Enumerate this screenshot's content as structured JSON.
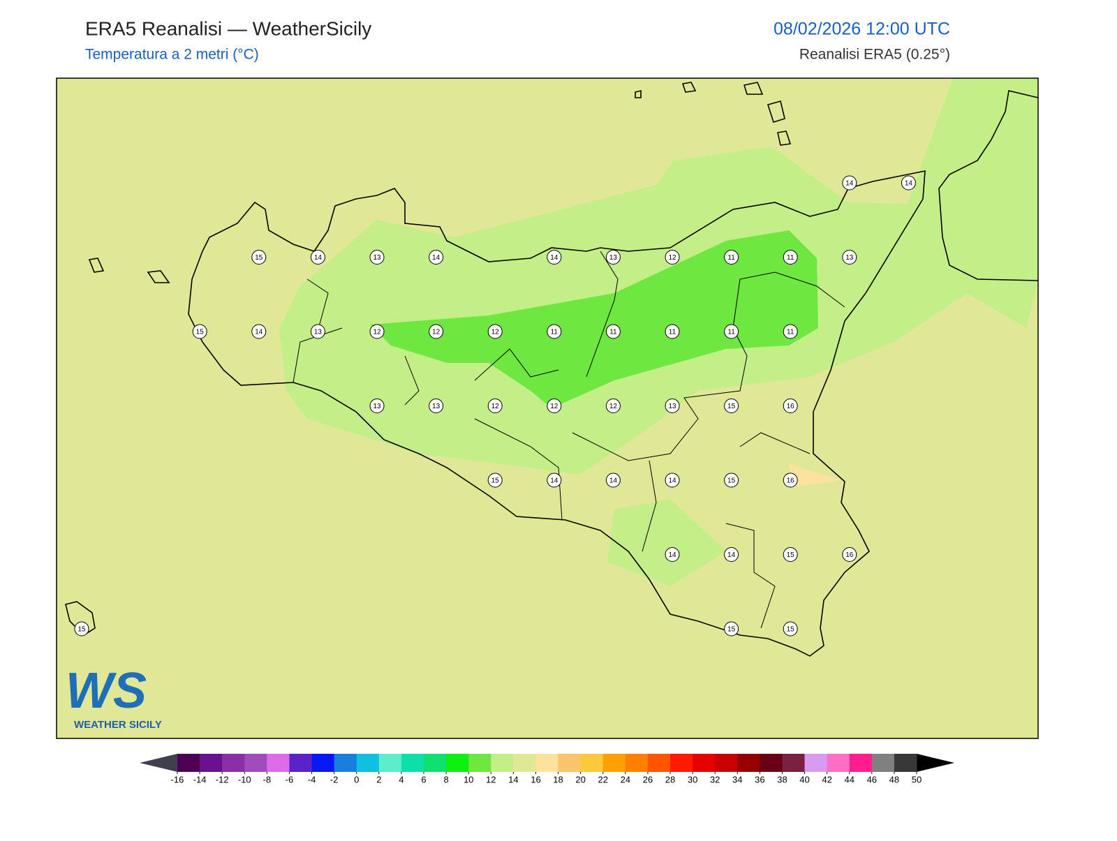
{
  "header": {
    "title": "ERA5 Reanalisi — WeatherSicily",
    "subtitle": "Temperatura a 2 metri (°C)",
    "datetime": "08/02/2026 12:00 UTC",
    "source": "Reanalisi ERA5 (0.25°)"
  },
  "logo": {
    "mark": "WS",
    "text": "WEATHER SICILY"
  },
  "stations": {
    "rows": [
      [
        null,
        null,
        null,
        null,
        null,
        null,
        null,
        null,
        null,
        null,
        null,
        null,
        null,
        14,
        14
      ],
      [
        null,
        null,
        null,
        15,
        14,
        13,
        14,
        null,
        14,
        13,
        12,
        11,
        11,
        13,
        null
      ],
      [
        null,
        null,
        15,
        14,
        13,
        12,
        12,
        12,
        11,
        11,
        11,
        11,
        11,
        null,
        null
      ],
      [
        null,
        null,
        null,
        null,
        null,
        13,
        13,
        12,
        12,
        12,
        13,
        15,
        16,
        null,
        null
      ],
      [
        null,
        null,
        null,
        null,
        null,
        null,
        null,
        15,
        14,
        14,
        14,
        15,
        16,
        null,
        null
      ],
      [
        null,
        null,
        null,
        null,
        null,
        null,
        null,
        null,
        null,
        null,
        14,
        14,
        15,
        16,
        null
      ],
      [
        15,
        null,
        null,
        null,
        null,
        null,
        null,
        null,
        null,
        null,
        null,
        15,
        15,
        null,
        null
      ]
    ]
  },
  "colorbar": {
    "ticks": [
      -16,
      -14,
      -12,
      -10,
      -8,
      -6,
      -4,
      -2,
      0,
      2,
      4,
      6,
      8,
      10,
      12,
      14,
      16,
      18,
      20,
      22,
      24,
      26,
      28,
      30,
      32,
      34,
      36,
      38,
      40,
      42,
      44,
      46,
      48,
      50
    ],
    "colors": [
      "#4b0052",
      "#6a118f",
      "#8b2fa6",
      "#a04cba",
      "#e06be8",
      "#5a23c8",
      "#0a18f5",
      "#1a7fdc",
      "#10c0e0",
      "#5ceec8",
      "#0ae0a8",
      "#10e070",
      "#10f010",
      "#6ee840",
      "#c4ee88",
      "#e0e898",
      "#fde19f",
      "#fbc56b",
      "#fcc83c",
      "#ffa000",
      "#ff7f00",
      "#ff5500",
      "#ff1a00",
      "#e60000",
      "#c80000",
      "#960000",
      "#6a0018",
      "#7a2040",
      "#d79bf3",
      "#ff6fc5",
      "#ff1e8c",
      "#808080",
      "#383838"
    ],
    "under_color": "#3f3f50",
    "over_color": "#000000"
  }
}
